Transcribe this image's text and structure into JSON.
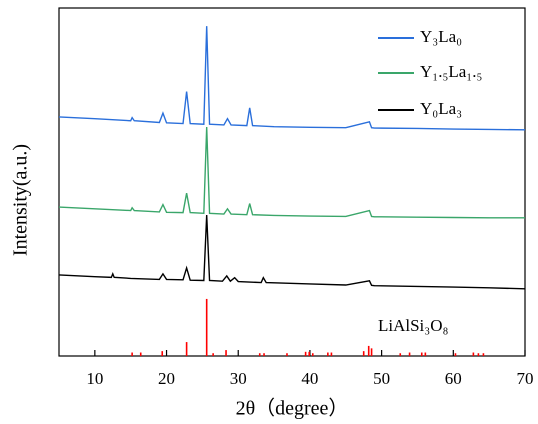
{
  "chart_data": {
    "type": "line",
    "x_label": "2θ（degree）",
    "y_label": "Intensity(a.u.)",
    "xlim": [
      5,
      70
    ],
    "xticks": [
      10,
      20,
      30,
      40,
      50,
      60,
      70
    ],
    "ylim": [
      0,
      100
    ],
    "legend": "upper right",
    "series": [
      {
        "name": "Y₃La₀",
        "color": "#2a6fdb",
        "x": [
          5,
          10,
          15,
          15.2,
          15.5,
          19,
          19.5,
          20,
          22.3,
          22.8,
          23.3,
          25.2,
          25.6,
          26,
          28,
          28.5,
          29,
          31.2,
          31.6,
          32,
          35,
          40,
          45,
          48.3,
          48.6,
          49,
          55,
          60,
          65,
          70
        ],
        "values": [
          68.7,
          68.2,
          67.6,
          68.5,
          67.6,
          67.1,
          69.8,
          67.0,
          66.8,
          76.0,
          66.8,
          66.6,
          94.8,
          66.6,
          66.4,
          68.2,
          66.4,
          66.2,
          71.3,
          66.2,
          65.9,
          65.7,
          65.6,
          67.3,
          65.6,
          65.5,
          65.4,
          65.2,
          65.1,
          65.0
        ]
      },
      {
        "name": "Y₁.₅La₁.₅",
        "color": "#3aa66a",
        "x": [
          5,
          10,
          15,
          15.2,
          15.5,
          19,
          19.5,
          20,
          22.3,
          22.8,
          23.3,
          25.2,
          25.6,
          26,
          28,
          28.5,
          29,
          31.2,
          31.6,
          32,
          35,
          40,
          45,
          48.3,
          48.6,
          49,
          55,
          60,
          65,
          70
        ],
        "values": [
          42.8,
          42.3,
          41.8,
          42.6,
          41.8,
          41.4,
          43.5,
          41.3,
          41.2,
          46.8,
          41.2,
          41.0,
          65.8,
          41.0,
          40.8,
          42.3,
          40.8,
          40.6,
          43.8,
          40.6,
          40.4,
          40.2,
          40.1,
          41.8,
          40.1,
          40.0,
          39.9,
          39.8,
          39.7,
          39.7
        ]
      },
      {
        "name": "Y₀La₃",
        "color": "#000000",
        "x": [
          5,
          10,
          12.3,
          12.5,
          12.7,
          15,
          19,
          19.5,
          20,
          22.3,
          22.8,
          23.3,
          25.2,
          25.6,
          26,
          27.8,
          28.4,
          28.9,
          29.5,
          30,
          33.2,
          33.5,
          33.9,
          40,
          45,
          48.3,
          48.6,
          49,
          55,
          60,
          65,
          70
        ],
        "values": [
          23.3,
          22.8,
          22.6,
          23.6,
          22.6,
          22.3,
          22.0,
          23.6,
          22.0,
          21.9,
          25.3,
          21.8,
          21.7,
          40.5,
          21.7,
          21.5,
          23.0,
          21.5,
          22.5,
          21.4,
          21.1,
          22.5,
          21.1,
          20.7,
          20.4,
          21.6,
          20.3,
          20.2,
          20.0,
          19.8,
          19.6,
          19.3
        ]
      },
      {
        "name": "LiAlSi₃O₈",
        "color": "#ff0000",
        "type": "stem",
        "x": [
          15.2,
          16.4,
          19.4,
          22.8,
          25.6,
          26.5,
          28.3,
          33.0,
          33.6,
          36.8,
          39.4,
          39.9,
          40.4,
          42.5,
          43.0,
          47.5,
          48.2,
          48.6,
          52.6,
          53.9,
          55.6,
          56.1,
          60.3,
          62.8,
          63.5,
          64.2
        ],
        "values": [
          1,
          1,
          1.4,
          4,
          16.4,
          0.8,
          1.7,
          0.8,
          0.8,
          0.8,
          1.2,
          1.2,
          0.8,
          1,
          1,
          1.4,
          2.9,
          2.2,
          0.8,
          1,
          1,
          1,
          0.8,
          1,
          0.8,
          0.8
        ]
      }
    ]
  }
}
